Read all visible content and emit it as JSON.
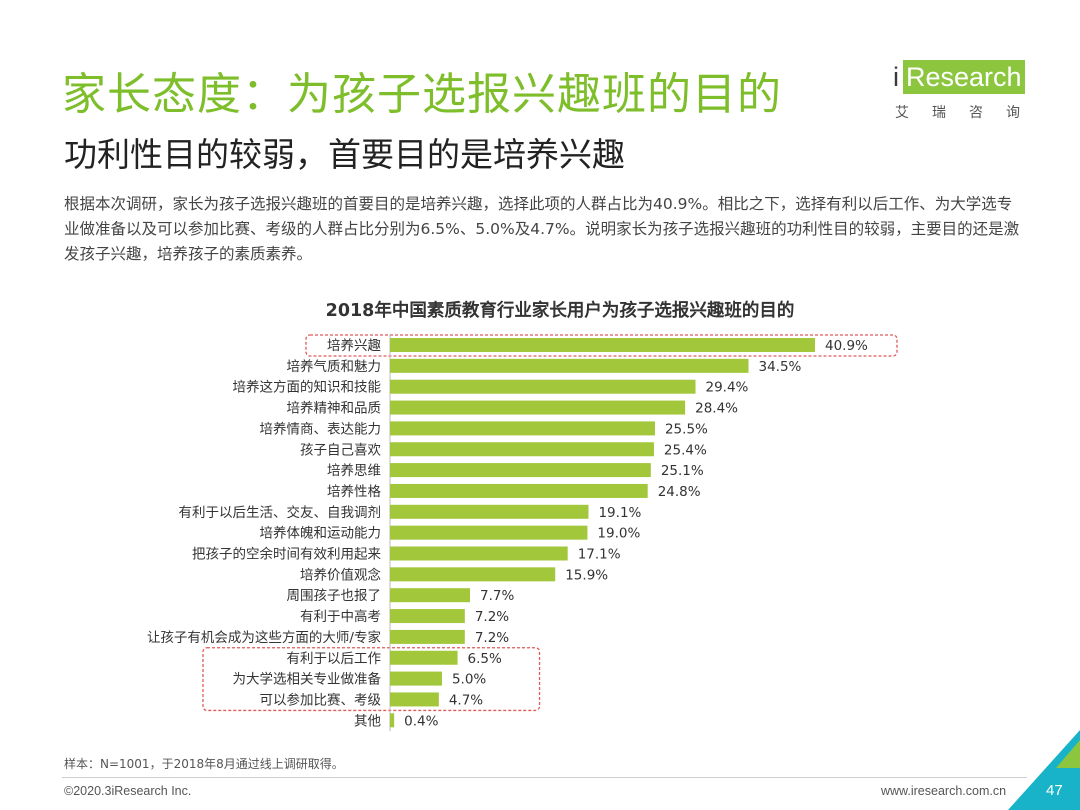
{
  "header": {
    "title": "家长态度：为孩子选报兴趣班的目的",
    "subtitle": "功利性目的较弱，首要目的是培养兴趣"
  },
  "logo": {
    "prefix": "i",
    "name": "Research",
    "chinese": "艾瑞咨询"
  },
  "body_text": "根据本次调研，家长为孩子选报兴趣班的首要目的是培养兴趣，选择此项的人群占比为40.9%。相比之下，选择有利以后工作、为大学选专业做准备以及可以参加比赛、考级的人群占比分别为6.5%、5.0%及4.7%。说明家长为孩子选报兴趣班的功利性目的较弱，主要目的还是激发孩子兴趣，培养孩子的素质素养。",
  "chart_data": {
    "type": "bar",
    "orientation": "horizontal",
    "title": "2018年中国素质教育行业家长用户为孩子选报兴趣班的目的",
    "categories": [
      "培养兴趣",
      "培养气质和魅力",
      "培养这方面的知识和技能",
      "培养精神和品质",
      "培养情商、表达能力",
      "孩子自己喜欢",
      "培养思维",
      "培养性格",
      "有利于以后生活、交友、自我调剂",
      "培养体魄和运动能力",
      "把孩子的空余时间有效利用起来",
      "培养价值观念",
      "周围孩子也报了",
      "有利于中高考",
      "让孩子有机会成为这些方面的大师/专家",
      "有利于以后工作",
      "为大学选相关专业做准备",
      "可以参加比赛、考级",
      "其他"
    ],
    "values": [
      40.9,
      34.5,
      29.4,
      28.4,
      25.5,
      25.4,
      25.1,
      24.8,
      19.1,
      19.0,
      17.1,
      15.9,
      7.7,
      7.2,
      7.2,
      6.5,
      5.0,
      4.7,
      0.4
    ],
    "value_labels": [
      "40.9%",
      "34.5%",
      "29.4%",
      "28.4%",
      "25.5%",
      "25.4%",
      "25.1%",
      "24.8%",
      "19.1%",
      "19.0%",
      "17.1%",
      "15.9%",
      "7.7%",
      "7.2%",
      "7.2%",
      "6.5%",
      "5.0%",
      "4.7%",
      "0.4%"
    ],
    "highlight_groups": [
      [
        0
      ],
      [
        15,
        16,
        17
      ]
    ],
    "bar_color": "#a2c73b",
    "highlight_color": "#e05a5a",
    "xlim": [
      0,
      45
    ],
    "grid": false,
    "legend": "none"
  },
  "footnote": "样本：N=1001，于2018年8月通过线上调研取得。",
  "footer": {
    "copyright": "©2020.3iResearch Inc.",
    "website": "www.iresearch.com.cn",
    "page_number": "47"
  },
  "colors": {
    "title_green": "#7dbe2a",
    "corner_teal": "#19b3c9",
    "corner_green": "#8cc63f"
  }
}
